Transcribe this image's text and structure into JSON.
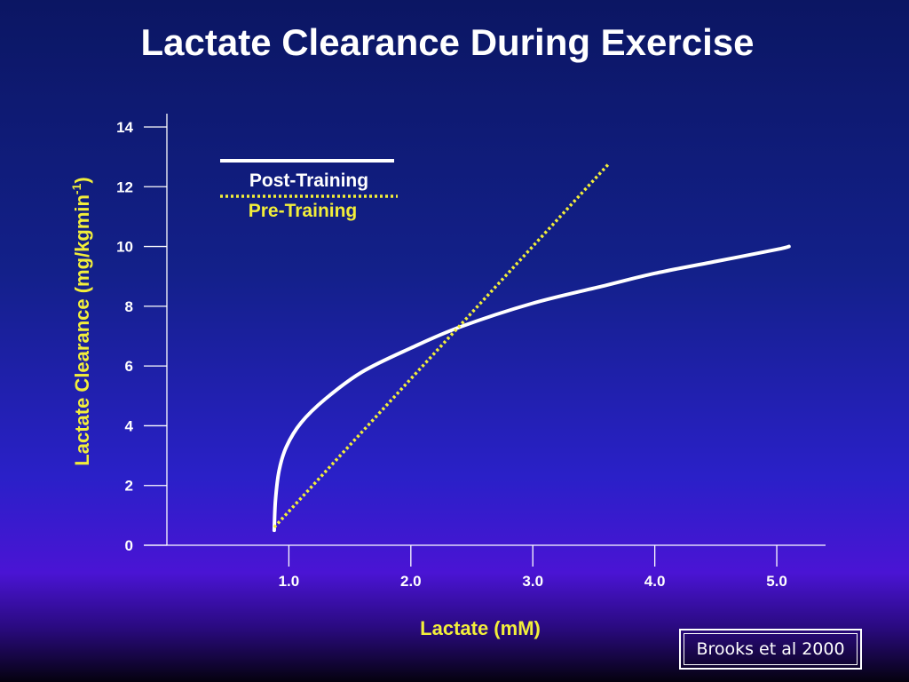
{
  "title": "Lactate Clearance During Exercise",
  "credit": "Brooks et al 2000",
  "colors": {
    "axis": "#ffffff",
    "post_training": "#ffffff",
    "pre_training": "#f2ee3a",
    "axis_label": "#f2ee3a",
    "tick_label": "#ffffff"
  },
  "chart_data": {
    "type": "line",
    "title": "Lactate Clearance During Exercise",
    "xlabel": "Lactate (mM)",
    "ylabel_main": "Lactate Clearance (mg/kgmin",
    "ylabel_sup": "-1",
    "ylabel_close": ")",
    "xlim": [
      0.0,
      5.4
    ],
    "ylim": [
      0,
      14
    ],
    "x_ticks": [
      {
        "value": 1.0,
        "label": "1.0"
      },
      {
        "value": 2.0,
        "label": "2.0"
      },
      {
        "value": 3.0,
        "label": "3.0"
      },
      {
        "value": 4.0,
        "label": "4.0"
      },
      {
        "value": 5.0,
        "label": "5.0"
      }
    ],
    "y_ticks": [
      {
        "value": 0,
        "label": "0"
      },
      {
        "value": 2,
        "label": "2"
      },
      {
        "value": 4,
        "label": "4"
      },
      {
        "value": 6,
        "label": "6"
      },
      {
        "value": 8,
        "label": "8"
      },
      {
        "value": 10,
        "label": "10"
      },
      {
        "value": 12,
        "label": "12"
      },
      {
        "value": 14,
        "label": "14"
      }
    ],
    "grid": false,
    "legend_position": "top-left",
    "series": [
      {
        "name": "Post-Training",
        "style": "solid",
        "color": "#ffffff",
        "points": [
          [
            0.88,
            0.5
          ],
          [
            0.89,
            1.5
          ],
          [
            0.92,
            2.5
          ],
          [
            0.98,
            3.3
          ],
          [
            1.1,
            4.1
          ],
          [
            1.3,
            4.9
          ],
          [
            1.6,
            5.8
          ],
          [
            2.0,
            6.6
          ],
          [
            2.4,
            7.3
          ],
          [
            3.0,
            8.1
          ],
          [
            3.6,
            8.7
          ],
          [
            4.0,
            9.1
          ],
          [
            4.5,
            9.5
          ],
          [
            5.0,
            9.9
          ],
          [
            5.1,
            10.0
          ]
        ]
      },
      {
        "name": "Pre-Training",
        "style": "dotted",
        "color": "#f2ee3a",
        "points": [
          [
            0.88,
            0.6
          ],
          [
            3.63,
            12.8
          ]
        ]
      }
    ]
  }
}
